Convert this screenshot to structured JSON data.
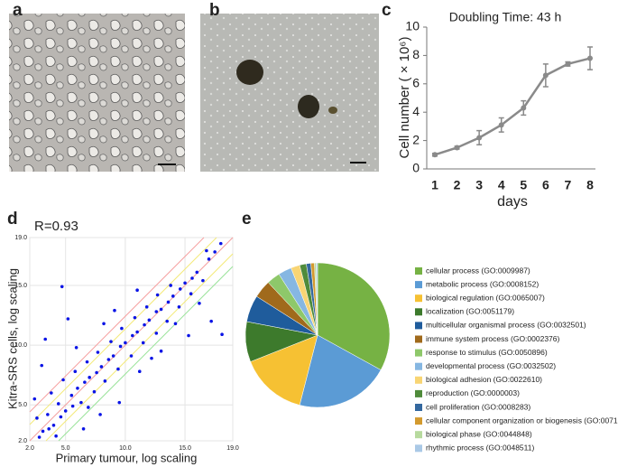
{
  "panel_labels": [
    "a",
    "b",
    "c",
    "d",
    "e"
  ],
  "chart_data": [
    {
      "type": "line",
      "title": "Doubling Time: 43 h",
      "xlabel": "days",
      "ylabel": "Cell number ( × 10⁶)",
      "x": [
        1,
        2,
        3,
        4,
        5,
        6,
        7,
        8
      ],
      "series": [
        {
          "name": "Cell number",
          "color": "#8a8a8a",
          "values": [
            1.0,
            1.5,
            2.2,
            3.1,
            4.3,
            6.6,
            7.4,
            7.8
          ],
          "errors": [
            0.1,
            0.1,
            0.5,
            0.5,
            0.5,
            0.8,
            0.15,
            0.8
          ]
        }
      ],
      "xlim": [
        1,
        8
      ],
      "xticks": [
        1,
        2,
        3,
        4,
        5,
        6,
        7,
        8
      ],
      "ylim": [
        0,
        10
      ],
      "yticks": [
        0,
        2,
        4,
        6,
        8,
        10
      ]
    },
    {
      "type": "scatter",
      "annotation": "R=0.93",
      "xlabel": "Primary tumour, log scaling",
      "ylabel": "Kitra-SRS cells, log scaling",
      "color": "#0a14e6",
      "grid": true,
      "x": [
        3.1,
        3.5,
        2.6,
        4.0,
        4.4,
        3.8,
        5.0,
        5.5,
        4.8,
        6.0,
        6.3,
        5.8,
        7.0,
        7.4,
        6.8,
        8.0,
        8.3,
        7.7,
        9.0,
        9.4,
        8.8,
        10.0,
        10.5,
        9.7,
        11.0,
        11.5,
        10.8,
        12.0,
        12.6,
        11.8,
        13.0,
        13.5,
        12.7,
        14.0,
        14.5,
        13.8,
        15.0,
        15.5,
        16.0,
        16.5,
        17.0,
        17.5,
        18.0,
        2.4,
        3.0,
        4.2,
        6.5,
        7.9,
        3.3,
        5.2,
        9.5,
        11.2,
        13.0,
        4.7,
        15.3,
        17.2,
        18.1,
        16.8,
        2.8,
        3.6,
        4.6,
        5.6,
        6.6,
        7.6,
        8.6,
        9.6,
        10.6,
        11.6,
        12.6,
        13.6,
        14.6,
        15.6,
        5.9,
        8.2,
        12.2,
        14.2,
        6.9,
        9.1,
        16.2,
        11.0
      ],
      "y": [
        2.8,
        4.2,
        3.9,
        3.3,
        5.1,
        6.0,
        4.5,
        5.8,
        7.1,
        6.4,
        5.2,
        7.8,
        7.3,
        6.1,
        8.6,
        8.2,
        7.0,
        9.4,
        9.1,
        8.0,
        10.3,
        10.2,
        9.1,
        11.4,
        11.1,
        10.2,
        12.3,
        12.1,
        11.0,
        13.2,
        13.0,
        12.0,
        14.2,
        14.1,
        13.2,
        15.0,
        15.2,
        14.3,
        16.1,
        15.4,
        17.2,
        17.8,
        18.5,
        5.5,
        8.3,
        2.4,
        3.0,
        4.2,
        10.5,
        12.2,
        5.2,
        7.8,
        9.5,
        14.9,
        10.8,
        12.0,
        10.9,
        17.9,
        2.3,
        3.0,
        4.0,
        4.9,
        6.9,
        7.7,
        8.8,
        9.9,
        10.8,
        11.7,
        12.8,
        13.6,
        14.7,
        15.6,
        9.8,
        11.8,
        8.9,
        11.8,
        4.8,
        12.9,
        13.5,
        14.6
      ],
      "xlim": [
        2,
        19
      ],
      "xticks": [
        {
          "value": 2,
          "label": "2.0"
        },
        {
          "value": 5,
          "label": "5.0"
        },
        {
          "value": 10,
          "label": "10.0"
        },
        {
          "value": 15,
          "label": "15.0"
        },
        {
          "value": 19,
          "label": "19.0"
        }
      ],
      "ylim": [
        2,
        19
      ],
      "yticks": [
        {
          "value": 2,
          "label": "2.0"
        },
        {
          "value": 5,
          "label": "5.0"
        },
        {
          "value": 10,
          "label": "10.0"
        },
        {
          "value": 15,
          "label": "15.0"
        },
        {
          "value": 19,
          "label": "19.0"
        }
      ]
    },
    {
      "type": "pie",
      "legend": "right",
      "categories": [
        "cellular process (GO:0009987)",
        "metabolic process (GO:0008152)",
        "biological regulation (GO:0065007)",
        "localization (GO:0051179)",
        "multicellular organismal process (GO:0032501)",
        "immune system process (GO:0002376)",
        "response to stimulus (GO:0050896)",
        "developmental process (GO:0032502)",
        "biological adhesion (GO:0022610)",
        "reproduction (GO:0000003)",
        "cell proliferation (GO:0008283)",
        "cellular component organization or biogenesis (GO:0071840)",
        "biological phase (GO:0044848)",
        "rhythmic process (GO:0048511)"
      ],
      "values": [
        33,
        21,
        15,
        9,
        6,
        4,
        3,
        3,
        2,
        1.5,
        1,
        0.8,
        0.4,
        0.3
      ],
      "colors": [
        "#76b244",
        "#5b9bd5",
        "#f6c133",
        "#3d7a2c",
        "#1f5c9c",
        "#a06a1c",
        "#8ec86a",
        "#86b7e2",
        "#f8d574",
        "#4f8b3b",
        "#34689f",
        "#d39a2e",
        "#b7da9e",
        "#aac9e6"
      ]
    }
  ]
}
